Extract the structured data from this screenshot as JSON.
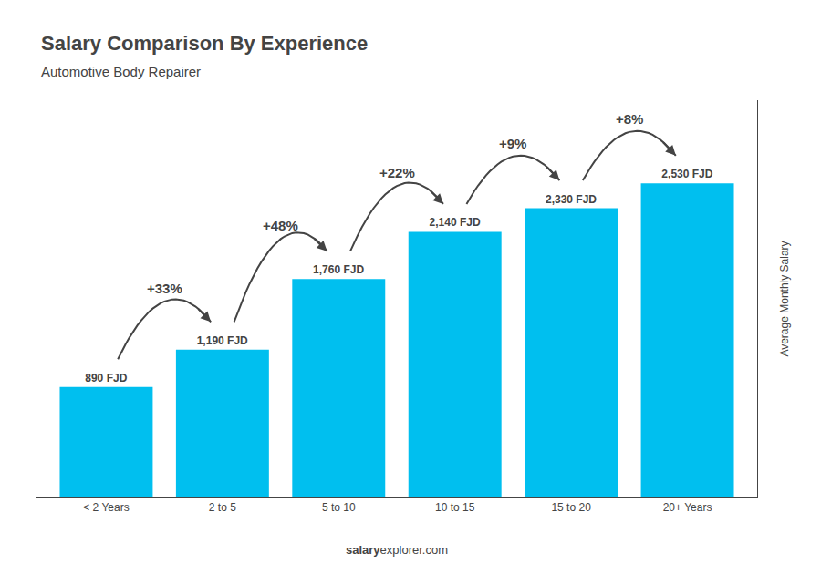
{
  "chart_data": {
    "type": "bar",
    "title": "Salary Comparison By Experience",
    "subtitle": "Automotive Body Repairer",
    "categories": [
      "< 2 Years",
      "2 to 5",
      "5 to 10",
      "10 to 15",
      "15 to 20",
      "20+ Years"
    ],
    "values": [
      890,
      1190,
      1760,
      2140,
      2330,
      2530
    ],
    "value_labels": [
      "890 FJD",
      "1,190 FJD",
      "1,760 FJD",
      "2,140 FJD",
      "2,330 FJD",
      "2,530 FJD"
    ],
    "data_labels": true,
    "color": "#00bfef",
    "ylabel": "Average Monthly Salary",
    "ylim": [
      0,
      3200
    ],
    "yticks": [],
    "tick_labels": "x",
    "grid": false,
    "annotations": [
      {
        "text": "+33%",
        "from": "< 2 Years",
        "to": "2 to 5"
      },
      {
        "text": "+48%",
        "from": "2 to 5",
        "to": "5 to 10"
      },
      {
        "text": "+22%",
        "from": "5 to 10",
        "to": "10 to 15"
      },
      {
        "text": "+9%",
        "from": "10 to 15",
        "to": "15 to 20"
      },
      {
        "text": "+8%",
        "from": "15 to 20",
        "to": "20+ Years"
      }
    ],
    "footer": [
      "salary",
      "explorer.com"
    ]
  }
}
